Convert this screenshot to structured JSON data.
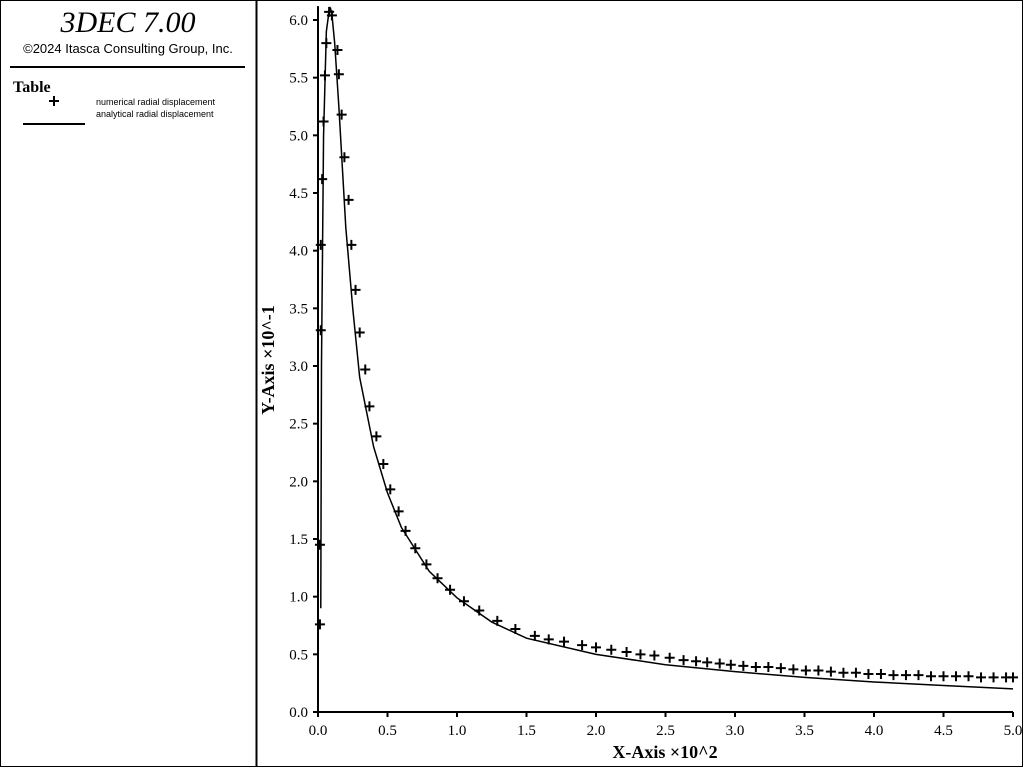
{
  "header": {
    "title": "3DEC 7.00",
    "copyright": "©2024 Itasca Consulting Group, Inc.",
    "legend_title": "Table"
  },
  "chart_data": {
    "type": "line",
    "xlabel": "X-Axis ×10^2",
    "ylabel": "Y-Axis ×10^-1",
    "xlim": [
      0,
      5
    ],
    "ylim": [
      0,
      6.12
    ],
    "xticks": [
      {
        "value": 0,
        "label": "0.0"
      },
      {
        "value": 0.5,
        "label": "0.5"
      },
      {
        "value": 1,
        "label": "1.0"
      },
      {
        "value": 1.5,
        "label": "1.5"
      },
      {
        "value": 2,
        "label": "2.0"
      },
      {
        "value": 2.5,
        "label": "2.5"
      },
      {
        "value": 3,
        "label": "3.0"
      },
      {
        "value": 3.5,
        "label": "3.5"
      },
      {
        "value": 4,
        "label": "4.0"
      },
      {
        "value": 4.5,
        "label": "4.5"
      },
      {
        "value": 5,
        "label": "5.0"
      }
    ],
    "yticks": [
      {
        "value": 0,
        "label": "0.0"
      },
      {
        "value": 0.5,
        "label": "0.5"
      },
      {
        "value": 1,
        "label": "1.0"
      },
      {
        "value": 1.5,
        "label": "1.5"
      },
      {
        "value": 2,
        "label": "2.0"
      },
      {
        "value": 2.5,
        "label": "2.5"
      },
      {
        "value": 3,
        "label": "3.0"
      },
      {
        "value": 3.5,
        "label": "3.5"
      },
      {
        "value": 4,
        "label": "4.0"
      },
      {
        "value": 4.5,
        "label": "4.5"
      },
      {
        "value": 5,
        "label": "5.0"
      },
      {
        "value": 5.5,
        "label": "5.5"
      },
      {
        "value": 6,
        "label": "6.0"
      }
    ],
    "series": [
      {
        "name": "numerical radial displacement",
        "color": "#000000",
        "marker": "+",
        "x": [
          0.014,
          0.014,
          0.02,
          0.02,
          0.03,
          0.04,
          0.05,
          0.06,
          0.08,
          0.1,
          0.14,
          0.15,
          0.17,
          0.19,
          0.22,
          0.24,
          0.27,
          0.3,
          0.34,
          0.37,
          0.42,
          0.47,
          0.52,
          0.58,
          0.63,
          0.7,
          0.78,
          0.86,
          0.95,
          1.05,
          1.16,
          1.29,
          1.42,
          1.56,
          1.66,
          1.77,
          1.9,
          2.0,
          2.11,
          2.22,
          2.32,
          2.42,
          2.53,
          2.63,
          2.72,
          2.8,
          2.89,
          2.97,
          3.06,
          3.15,
          3.24,
          3.33,
          3.42,
          3.51,
          3.6,
          3.69,
          3.78,
          3.87,
          3.96,
          4.05,
          4.14,
          4.23,
          4.32,
          4.41,
          4.5,
          4.59,
          4.68,
          4.77,
          4.86,
          4.95,
          5.0
        ],
        "values": [
          0.76,
          1.45,
          3.31,
          4.05,
          4.62,
          5.12,
          5.52,
          5.8,
          6.07,
          6.04,
          5.74,
          5.53,
          5.18,
          4.81,
          4.44,
          4.05,
          3.66,
          3.29,
          2.97,
          2.65,
          2.39,
          2.15,
          1.93,
          1.74,
          1.57,
          1.42,
          1.28,
          1.16,
          1.06,
          0.96,
          0.88,
          0.79,
          0.72,
          0.66,
          0.63,
          0.61,
          0.58,
          0.56,
          0.54,
          0.52,
          0.5,
          0.49,
          0.47,
          0.45,
          0.44,
          0.43,
          0.42,
          0.41,
          0.4,
          0.39,
          0.39,
          0.38,
          0.37,
          0.36,
          0.36,
          0.35,
          0.34,
          0.34,
          0.33,
          0.33,
          0.32,
          0.32,
          0.32,
          0.31,
          0.31,
          0.31,
          0.31,
          0.3,
          0.3,
          0.3,
          0.3
        ]
      },
      {
        "name": "analytical radial displacement",
        "color": "#000000",
        "marker": "line",
        "x": [
          0.02,
          0.025,
          0.04,
          0.06,
          0.08,
          0.09,
          0.1,
          0.12,
          0.15,
          0.2,
          0.25,
          0.3,
          0.4,
          0.5,
          0.6,
          0.8,
          1.0,
          1.25,
          1.5,
          2,
          2.5,
          3,
          3.5,
          4,
          4.5,
          5
        ],
        "values": [
          0.9,
          3.0,
          5.0,
          5.9,
          6.08,
          6.1,
          6.05,
          5.8,
          5.25,
          4.2,
          3.5,
          2.9,
          2.3,
          1.9,
          1.6,
          1.22,
          0.99,
          0.78,
          0.64,
          0.5,
          0.41,
          0.35,
          0.3,
          0.26,
          0.23,
          0.2
        ]
      }
    ]
  }
}
